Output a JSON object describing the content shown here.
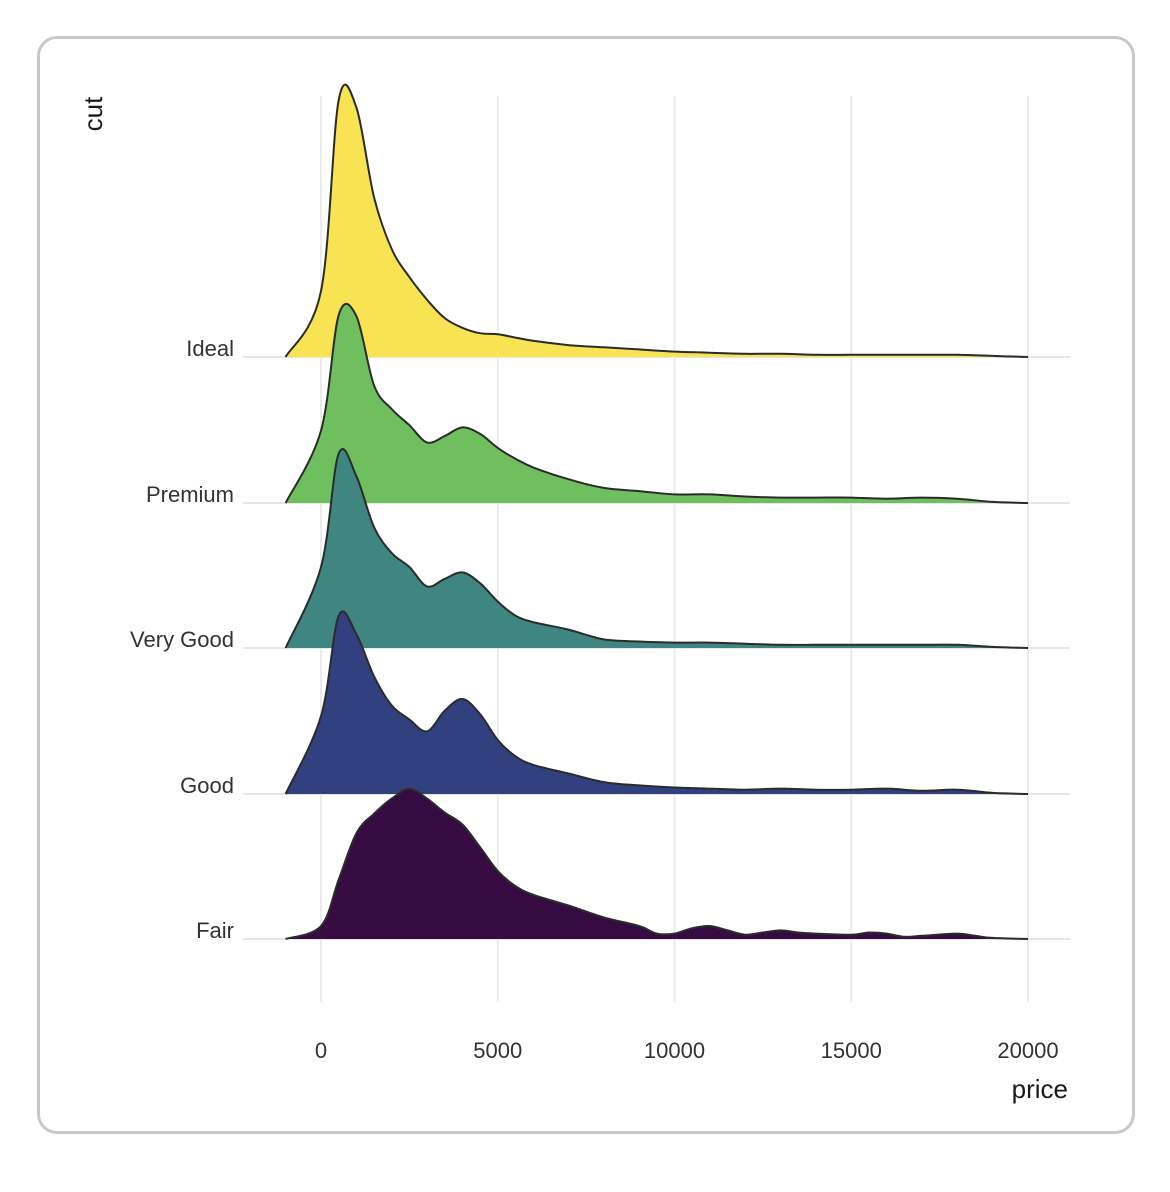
{
  "chart_data": {
    "type": "ridgeline-density",
    "xlabel": "price",
    "ylabel": "cut",
    "x_ticks": [
      0,
      5000,
      10000,
      15000,
      20000
    ],
    "x_tick_labels": [
      "0",
      "5000",
      "10000",
      "15000",
      "20000"
    ],
    "xlim": [
      -1000,
      21000
    ],
    "grid": "vertical",
    "legend": "none",
    "series": [
      {
        "name": "Fair",
        "color": "#360b41",
        "x": [
          -1000,
          0,
          500,
          1000,
          1500,
          2000,
          2500,
          3000,
          3500,
          4000,
          4500,
          5000,
          5500,
          6000,
          7000,
          8000,
          9000,
          9500,
          10000,
          10500,
          11000,
          11500,
          12000,
          12500,
          13000,
          13500,
          14000,
          15000,
          15500,
          16000,
          16500,
          17000,
          18000,
          18500,
          19000,
          20000
        ],
        "density": [
          0.0,
          0.12,
          0.55,
          0.98,
          1.16,
          1.3,
          1.39,
          1.3,
          1.17,
          1.06,
          0.85,
          0.63,
          0.49,
          0.41,
          0.31,
          0.2,
          0.12,
          0.05,
          0.05,
          0.1,
          0.12,
          0.08,
          0.04,
          0.06,
          0.08,
          0.06,
          0.05,
          0.04,
          0.06,
          0.05,
          0.02,
          0.03,
          0.05,
          0.03,
          0.01,
          0.0
        ]
      },
      {
        "name": "Good",
        "color": "#31417f",
        "x": [
          -1000,
          0,
          500,
          1000,
          1500,
          2000,
          2500,
          3000,
          3500,
          4000,
          4500,
          5000,
          5500,
          6000,
          7000,
          8000,
          9000,
          10000,
          11000,
          12000,
          13000,
          14000,
          15000,
          16000,
          17000,
          18000,
          19000,
          20000
        ],
        "density": [
          0.0,
          0.72,
          1.65,
          1.48,
          1.09,
          0.82,
          0.69,
          0.58,
          0.77,
          0.88,
          0.74,
          0.5,
          0.35,
          0.27,
          0.19,
          0.11,
          0.08,
          0.06,
          0.05,
          0.04,
          0.05,
          0.04,
          0.04,
          0.05,
          0.03,
          0.04,
          0.01,
          0.0
        ]
      },
      {
        "name": "Very Good",
        "color": "#3f8580",
        "x": [
          -1000,
          0,
          500,
          1000,
          1500,
          2000,
          2500,
          3000,
          3500,
          4000,
          4500,
          5000,
          5500,
          6000,
          7000,
          8000,
          9000,
          10000,
          11000,
          12000,
          13000,
          14000,
          15000,
          16000,
          17000,
          18000,
          19000,
          20000
        ],
        "density": [
          0.0,
          0.75,
          1.8,
          1.59,
          1.12,
          0.88,
          0.75,
          0.57,
          0.64,
          0.7,
          0.6,
          0.43,
          0.3,
          0.24,
          0.17,
          0.08,
          0.06,
          0.05,
          0.05,
          0.04,
          0.03,
          0.03,
          0.03,
          0.03,
          0.03,
          0.03,
          0.01,
          0.0
        ]
      },
      {
        "name": "Premium",
        "color": "#6fbf5f",
        "x": [
          -1000,
          0,
          500,
          1000,
          1500,
          2000,
          2500,
          3000,
          3500,
          4000,
          4500,
          5000,
          5500,
          6000,
          7000,
          8000,
          9000,
          10000,
          11000,
          12000,
          13000,
          14000,
          15000,
          16000,
          17000,
          18000,
          19000,
          20000
        ],
        "density": [
          0.0,
          0.67,
          1.74,
          1.73,
          1.09,
          0.87,
          0.72,
          0.56,
          0.62,
          0.7,
          0.64,
          0.51,
          0.41,
          0.33,
          0.22,
          0.14,
          0.11,
          0.08,
          0.08,
          0.06,
          0.05,
          0.05,
          0.05,
          0.04,
          0.05,
          0.04,
          0.01,
          0.0
        ]
      },
      {
        "name": "Ideal",
        "color": "#f8e352",
        "x": [
          -1000,
          0,
          500,
          1000,
          1500,
          2000,
          2500,
          3000,
          3500,
          4000,
          4500,
          5000,
          5500,
          6000,
          7000,
          8000,
          9000,
          10000,
          11000,
          12000,
          13000,
          14000,
          15000,
          16000,
          17000,
          18000,
          19000,
          20000
        ],
        "density": [
          0.0,
          0.61,
          2.38,
          2.31,
          1.48,
          1.0,
          0.74,
          0.53,
          0.36,
          0.27,
          0.22,
          0.21,
          0.18,
          0.15,
          0.11,
          0.09,
          0.07,
          0.05,
          0.04,
          0.03,
          0.03,
          0.02,
          0.02,
          0.02,
          0.02,
          0.02,
          0.01,
          0.0
        ]
      }
    ]
  }
}
